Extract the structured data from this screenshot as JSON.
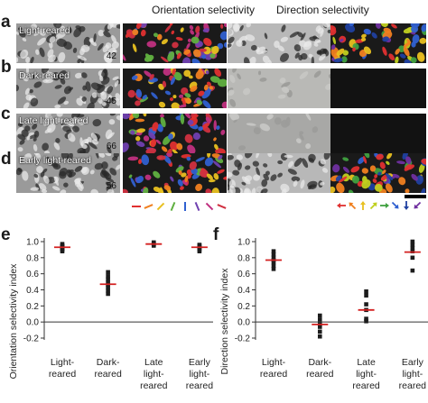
{
  "panels": {
    "a": "a",
    "b": "b",
    "c": "c",
    "d": "d",
    "e": "e",
    "f": "f"
  },
  "headers": {
    "orientation": "Orientation selectivity",
    "direction": "Direction selectivity"
  },
  "rows": [
    {
      "condition": "Light-reared",
      "number": "42"
    },
    {
      "condition": "Dark-reared",
      "number": "45"
    },
    {
      "condition": "Late light-reared",
      "number": "66"
    },
    {
      "condition": "Early light-reared",
      "number": "56"
    }
  ],
  "colors": {
    "orientation_key": [
      "#e03030",
      "#f08020",
      "#e8c020",
      "#60b040",
      "#3060d0",
      "#7040b0",
      "#c03080",
      "#d03040"
    ],
    "direction_key": [
      "#e03030",
      "#f08020",
      "#e8c020",
      "#c0d020",
      "#40a040",
      "#3060d0",
      "#2040a0",
      "#7030a0"
    ],
    "median": "#d32020"
  },
  "chart_data": [
    {
      "type": "scatter",
      "panel": "e",
      "ylabel": "Orientation selectivity index",
      "ylim": [
        -0.2,
        1.0
      ],
      "yticks": [
        "-0.2",
        "0.0",
        "0.2",
        "0.4",
        "0.6",
        "0.8",
        "1.0"
      ],
      "categories": [
        [
          "Light-",
          "reared"
        ],
        [
          "Dark-",
          "reared"
        ],
        [
          "Late",
          "light-",
          "reared"
        ],
        [
          "Early",
          "light-",
          "reared"
        ]
      ],
      "points": [
        [
          0.97,
          0.95,
          0.94,
          0.93,
          0.92,
          0.91,
          0.9,
          0.88
        ],
        [
          0.62,
          0.57,
          0.53,
          0.49,
          0.46,
          0.43,
          0.39,
          0.35
        ],
        [
          0.99,
          0.98,
          0.97,
          0.96,
          0.95
        ],
        [
          0.96,
          0.95,
          0.93,
          0.92,
          0.9,
          0.88
        ]
      ],
      "medians": [
        0.93,
        0.47,
        0.97,
        0.93
      ]
    },
    {
      "type": "scatter",
      "panel": "f",
      "ylabel": "Direction selectivity index",
      "ylim": [
        -0.2,
        1.0
      ],
      "yticks": [
        "-0.2",
        "0.0",
        "0.2",
        "0.4",
        "0.6",
        "0.8",
        "1.0"
      ],
      "categories": [
        [
          "Light-",
          "reared"
        ],
        [
          "Dark-",
          "reared"
        ],
        [
          "Late",
          "light-",
          "reared"
        ],
        [
          "Early",
          "light-",
          "reared"
        ]
      ],
      "points": [
        [
          0.88,
          0.84,
          0.8,
          0.77,
          0.74,
          0.7,
          0.66
        ],
        [
          0.08,
          0.03,
          -0.03,
          -0.06,
          -0.12,
          -0.18
        ],
        [
          0.38,
          0.33,
          0.22,
          0.15,
          0.04,
          0.01
        ],
        [
          1.0,
          0.96,
          0.92,
          0.88,
          0.8,
          0.64
        ]
      ],
      "medians": [
        0.77,
        -0.03,
        0.15,
        0.87
      ]
    }
  ]
}
